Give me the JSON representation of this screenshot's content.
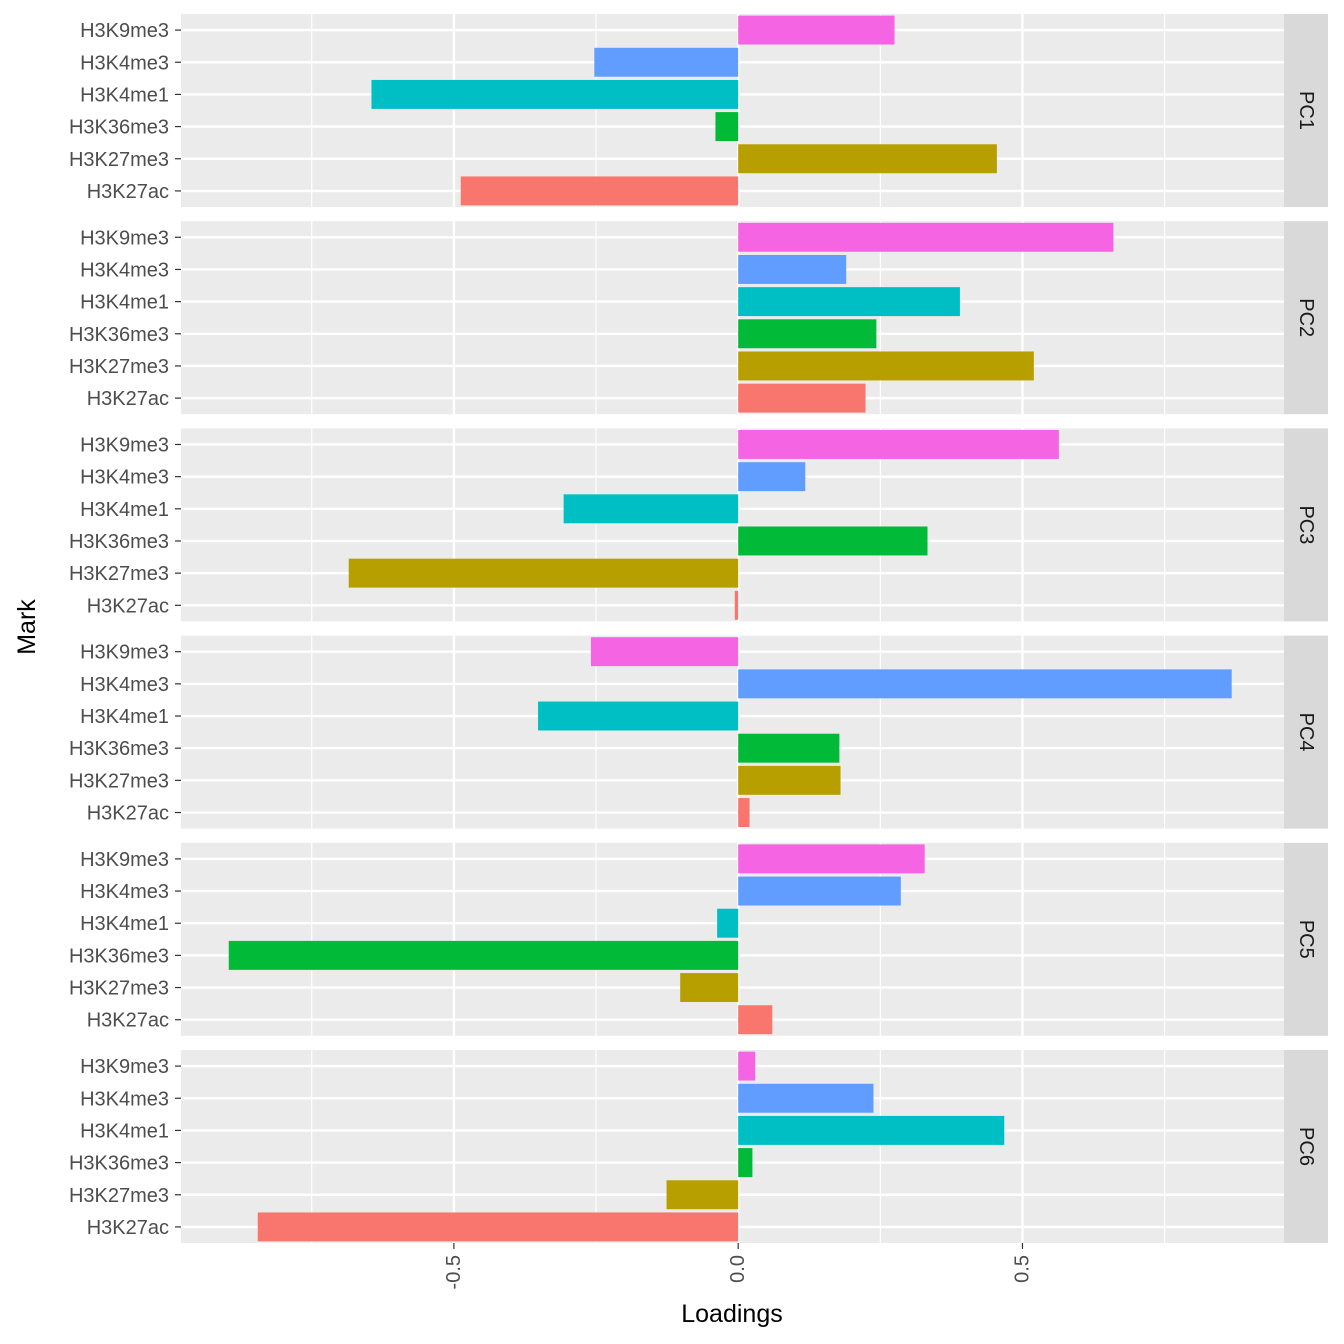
{
  "chart_data": {
    "type": "bar",
    "orientation": "horizontal",
    "xlabel": "Loadings",
    "ylabel": "Mark",
    "xlim": [
      -0.98,
      0.96
    ],
    "x_ticks": [
      -0.5,
      0.0,
      0.5
    ],
    "x_tick_labels": [
      "-0.5",
      "0.0",
      "0.5"
    ],
    "categories": [
      "H3K9me3",
      "H3K4me3",
      "H3K4me1",
      "H3K36me3",
      "H3K27me3",
      "H3K27ac"
    ],
    "colors": {
      "H3K9me3": "#F564E3",
      "H3K4me3": "#619CFF",
      "H3K4me1": "#00BFC4",
      "H3K36me3": "#00BA38",
      "H3K27me3": "#B79F00",
      "H3K27ac": "#F8766D"
    },
    "panels": [
      {
        "label": "PC1",
        "values": [
          0.275,
          -0.253,
          -0.645,
          -0.04,
          0.455,
          -0.488
        ]
      },
      {
        "label": "PC2",
        "values": [
          0.66,
          0.19,
          0.39,
          0.243,
          0.52,
          0.224
        ]
      },
      {
        "label": "PC3",
        "values": [
          0.564,
          0.118,
          -0.307,
          0.333,
          -0.685,
          -0.006
        ]
      },
      {
        "label": "PC4",
        "values": [
          -0.259,
          0.868,
          -0.352,
          0.178,
          0.18,
          0.02
        ]
      },
      {
        "label": "PC5",
        "values": [
          0.328,
          0.286,
          -0.037,
          -0.896,
          -0.102,
          0.06
        ]
      },
      {
        "label": "PC6",
        "values": [
          0.03,
          0.238,
          0.468,
          0.025,
          -0.126,
          -0.845
        ]
      }
    ]
  }
}
